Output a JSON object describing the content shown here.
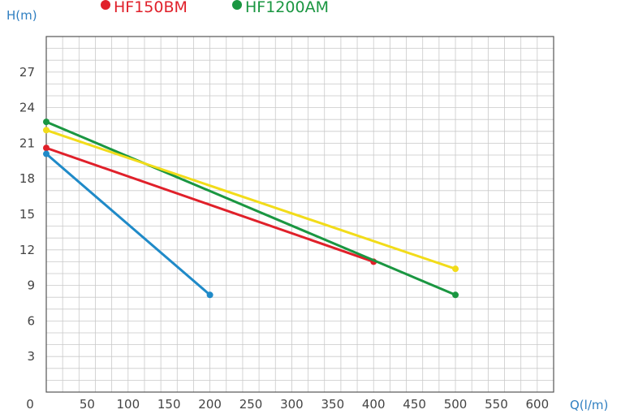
{
  "chart_data": {
    "type": "line",
    "xlabel": "Q(l/m)",
    "ylabel": "H(m)",
    "xlim": [
      0,
      620
    ],
    "ylim": [
      0,
      30
    ],
    "x_ticks": [
      0,
      50,
      100,
      150,
      200,
      250,
      300,
      350,
      400,
      450,
      500,
      550,
      600
    ],
    "y_ticks": [
      3,
      6,
      9,
      12,
      15,
      18,
      21,
      24,
      27
    ],
    "grid": true,
    "legend": {
      "position": "top",
      "entries": [
        {
          "label": "HF150BM",
          "color": "#e0202a"
        },
        {
          "label": "HF1200AM",
          "color": "#1a9641"
        }
      ]
    },
    "series": [
      {
        "name": "HF150BM",
        "color": "#e0202a",
        "points": [
          [
            0,
            20.6
          ],
          [
            400,
            11.0
          ]
        ]
      },
      {
        "name": "HF1200AM",
        "color": "#1a9641",
        "points": [
          [
            0,
            22.8
          ],
          [
            500,
            8.2
          ]
        ]
      },
      {
        "color": "#f2dc1a",
        "points": [
          [
            0,
            22.1
          ],
          [
            500,
            10.4
          ]
        ]
      },
      {
        "color": "#1f8ac8",
        "points": [
          [
            0,
            20.1
          ],
          [
            200,
            8.2
          ]
        ]
      }
    ],
    "colors": {
      "axis_label": "#2f7fc1",
      "grid": "#c9c9c9",
      "frame": "#555555",
      "tick": "#444444"
    }
  }
}
